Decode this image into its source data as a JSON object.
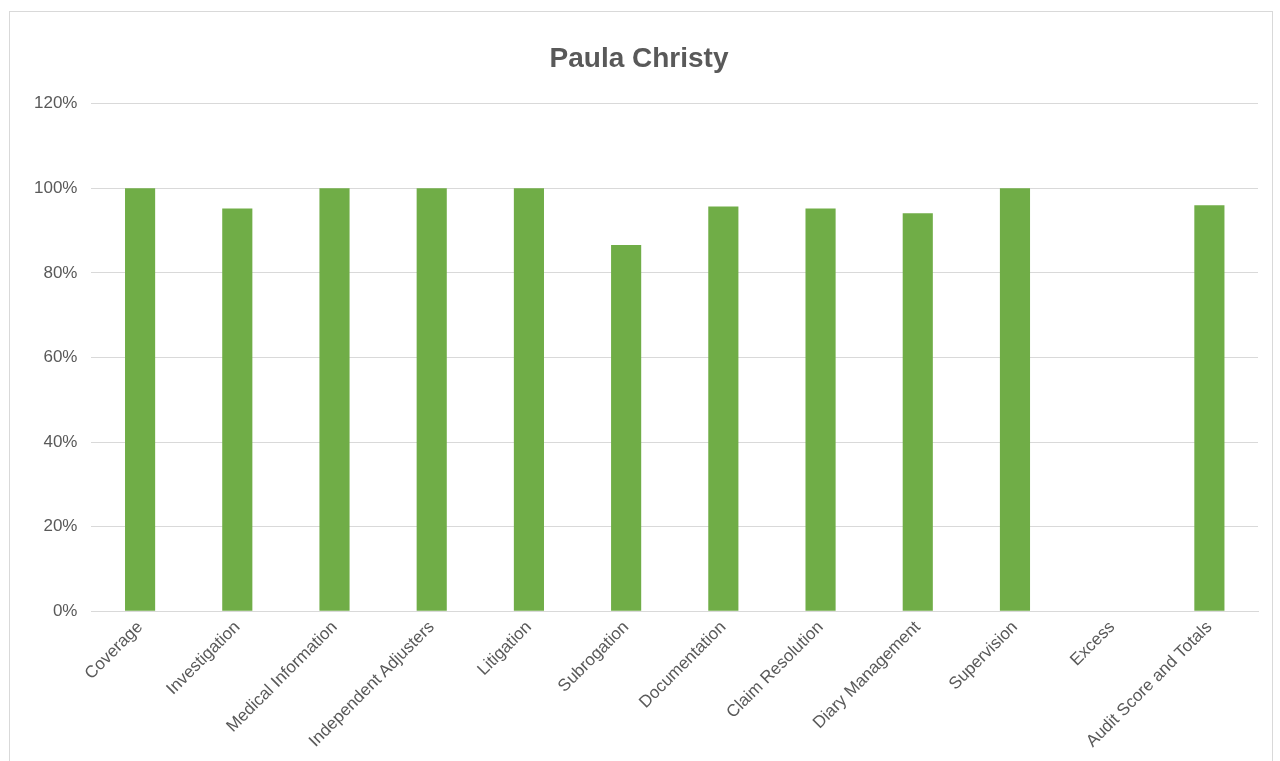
{
  "chart_data": {
    "type": "bar",
    "title": "Paula Christy",
    "categories": [
      "Coverage",
      "Investigation",
      "Medical Information",
      "Independent Adjusters",
      "Litigation",
      "Subrogation",
      "Documentation",
      "Claim Resolution",
      "Diary Management",
      "Supervision",
      "Excess",
      "Audit Score and Totals"
    ],
    "values": [
      100,
      95.2,
      100,
      100,
      100,
      86.6,
      95.7,
      95.2,
      94.1,
      100,
      null,
      96.0
    ],
    "color": "#70ad47",
    "ylim": [
      0,
      120
    ],
    "yticks": [
      {
        "value": 0,
        "label": "0%"
      },
      {
        "value": 20,
        "label": "20%"
      },
      {
        "value": 40,
        "label": "40%"
      },
      {
        "value": 60,
        "label": "60%"
      },
      {
        "value": 80,
        "label": "80%"
      },
      {
        "value": 100,
        "label": "100%"
      },
      {
        "value": 120,
        "label": "120%"
      }
    ],
    "grid": "y",
    "legend": false
  }
}
